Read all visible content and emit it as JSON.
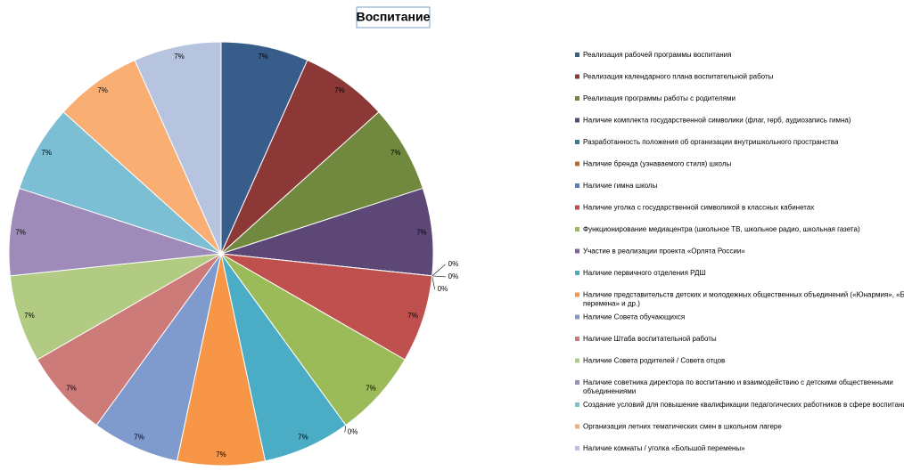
{
  "chart_data": {
    "type": "pie",
    "title": "Воспитание",
    "categories": [
      "Реализация рабочей программы воспитания",
      "Реализация календарного плана воспитательной работы",
      "Реализация программы работы с родителями",
      "Наличие комплекта государственной символики (флаг, герб, аудиозапись гимна)",
      "Разработанность положения об организации внутришкольного пространства",
      "Наличие бренда (узнаваемого стиля) школы",
      "Наличие гимна школы",
      "Наличие уголка с государственной символикой в классных кабинетах",
      "Функционирование медиацентра (школьное ТВ, школьное радио, школьная газета)",
      "Участие в реализации проекта «Орлята России»",
      "Наличие первичного отделения РДШ",
      "Наличие представительств детских и молодежных общественных объединений («Юнармия», «Большая перемена» и др.)",
      "Наличие Совета обучающихся",
      "Наличие Штаба воспитательной работы",
      "Наличие Совета родителей / Совета отцов",
      "Наличие советника директора по воспитанию и взаимодействию с детскими общественными объединениями",
      "Создание условий для повышение квалификации педагогических работников в сфере воспитания",
      "Организация летних тематических смен в школьном лагере",
      "Наличие комнаты / уголка «Большой перемены»"
    ],
    "values": [
      6.67,
      6.67,
      6.67,
      6.67,
      0,
      0,
      0,
      6.67,
      6.67,
      0,
      6.67,
      6.67,
      6.67,
      6.67,
      6.67,
      6.67,
      6.67,
      6.67,
      6.67
    ],
    "value_labels": [
      "7%",
      "7%",
      "7%",
      "7%",
      "0%",
      "0%",
      "0%",
      "7%",
      "7%",
      "0%",
      "7%",
      "7%",
      "7%",
      "7%",
      "7%",
      "7%",
      "7%",
      "7%",
      "7%"
    ],
    "colors": [
      "#385D8A",
      "#8C3836",
      "#71893F",
      "#5C4776",
      "#357D91",
      "#B66D31",
      "#4F81BD",
      "#C0504D",
      "#9BBB59",
      "#8064A2",
      "#4BACC6",
      "#F79646",
      "#7F9ACD",
      "#CD7B79",
      "#B1CB82",
      "#9E8BBA",
      "#7CBED4",
      "#F9AE74",
      "#B7C4E0"
    ]
  }
}
